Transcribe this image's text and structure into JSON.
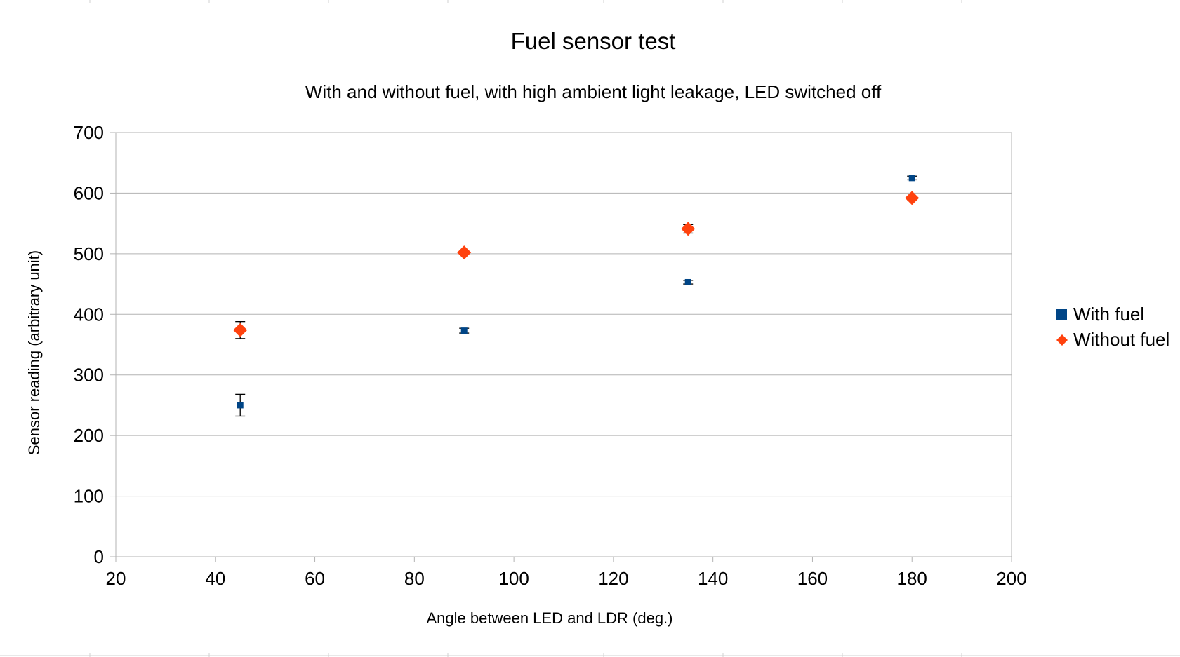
{
  "chart_data": {
    "type": "scatter",
    "title": "Fuel sensor test",
    "subtitle": "With and without fuel, with high ambient light leakage, LED switched off",
    "xlabel": "Angle between LED and LDR (deg.)",
    "ylabel": "Sensor reading (arbitrary unit)",
    "xlim": [
      20,
      200
    ],
    "ylim": [
      0,
      700
    ],
    "x_ticks": [
      "20",
      "40",
      "60",
      "80",
      "100",
      "120",
      "140",
      "160",
      "180",
      "200"
    ],
    "y_ticks": [
      "0",
      "100",
      "200",
      "300",
      "400",
      "500",
      "600",
      "700"
    ],
    "grid": "horizontal",
    "legend": "right",
    "series": [
      {
        "name": "With fuel",
        "marker": "square",
        "color": "#004586",
        "points": [
          {
            "x": 45,
            "y": 250,
            "err": 18
          },
          {
            "x": 90,
            "y": 373,
            "err": 4
          },
          {
            "x": 135,
            "y": 453,
            "err": 3
          },
          {
            "x": 180,
            "y": 625,
            "err": 3
          }
        ]
      },
      {
        "name": "Without fuel",
        "marker": "diamond",
        "color": "#ff420e",
        "points": [
          {
            "x": 45,
            "y": 374,
            "err": 14
          },
          {
            "x": 90,
            "y": 502,
            "err": 2
          },
          {
            "x": 135,
            "y": 541,
            "err": 7
          },
          {
            "x": 180,
            "y": 592,
            "err": 3
          }
        ]
      }
    ]
  }
}
